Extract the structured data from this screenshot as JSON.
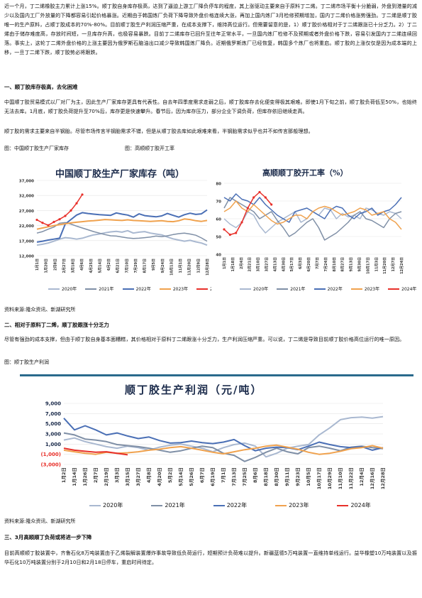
{
  "paragraphs": {
    "intro": "近一个月，丁二烯橡胶主力累计上涨15%。顺丁胶自身库存极高，达到了逼迫上游工厂降负停车的程度，其上涨驱动主要来自于原料丁二烯。丁二烯市场平衡十分脆弱，外盘到港量的减少以及国内工厂外放量的下降都容易引起价格暴涨。近期由于韩国炼厂负荷下降导致外盘价格连续大涨，再加上国内炼厂3月检修预期增加，国内丁二烯价格涨势强劲。丁二烯是顺丁胶唯一的生产原料，占顺丁胶成本的70%-80%。目前顺丁胶生产利润压缩严重，在成本支撑下，维持高位运行。但需要留意的是，1）顺丁胶价格相对于丁二烯跟涨已十分乏力。2）丁二烯由于储存难度高，存放时间短，一旦库存升高，也极容易暴跌。目前丁二烯库存已回升至往年正常水平，一旦国内炼厂检修不及预期或者外盘价格下跌，容易引发国内丁二烯连续回落。事实上，这轮丁二烯外盘价格的上涨主要因为俄罗斯石脑油出口减少导致韩国炼厂降负。近期俄罗斯炼厂已经恢复，韩国多个炼厂也将重启。顺丁胶的上涨仅仅是因为成本端的上移，一旦丁二烯下跌，顺丁胶势必将跟跌。",
    "s1_p1": "中国顺丁胶贸易模式以厂对厂为主，因此生产厂家库存更具有代表性。自去年四季度需求走弱之后，顺丁胶库存去化便变得极其艰难。即使1月下旬之前，顺丁胶负荷低至50%，也始终无法去库。1月底，顺丁胶负荷提升至70%后，库存更是快速攀升。春节后，因为库存压力，部分企业下调负荷，但库存依旧继续走高。",
    "s1_p2": "顺丁胶的需求主要来自半钢胎。尽管市场传言半钢胎需求不错，但是从顺丁胶去库如此艰难来看，半钢胎需求似乎也并不如传言那般理想。",
    "s2_p1": "尽管有强劲的成本支撑，但由于顺丁胶自身基本面糟糕，其价格相对于原料丁二烯跟涨十分乏力，生产利润压缩严重。可以说，丁二烯是导致目前顺丁胶价格高位运行的唯一原因。",
    "s3_p1": "目前高顺顺丁胶装置中，齐鲁石化8万吨装置由于乙烯裂解装置爆炸事故导致低负荷运行，短期预计负荷难以提升。新疆蓝德5万吨装置一直维持单线运行。益华橡塑10万吨装置以及振华石化10万吨装置分别于2月10日和2月18日停车，重启时间待定。"
  },
  "headings": {
    "s1": "一、顺丁胶库存极高，去化困难",
    "s2": "二、相对于原料丁二烯，顺丁胶跟涨十分乏力",
    "s3": "三、3月高顺顺丁负荷或将进一步下降"
  },
  "captions": {
    "fig_inventory": "图：中国顺丁胶生产厂家库存",
    "fig_rate": "图：高顺顺丁胶开工率",
    "source1": "资料来源:隆众资讯、新湖研究所",
    "fig_profit": "图：顺丁胶生产利润",
    "source2": "资料来源:隆众资讯、新湖研究所"
  },
  "colors": {
    "y2020": "#a9b8d0",
    "y2021": "#7f8fa6",
    "y2022": "#4a6fb5",
    "y2023": "#f0a24e",
    "y2024": "#e8302a",
    "profit2022": "#3a62b0",
    "profit2023": "#f5a04a",
    "grid": "#e3e3e3",
    "titleBand": "#2a6a8c"
  },
  "chart_data": [
    {
      "id": "inventory",
      "type": "line",
      "title": "中国顺丁胶生产厂家库存（吨）",
      "ylim": [
        12000,
        37000
      ],
      "yticks": [
        "12,000",
        "17,000",
        "22,000",
        "27,000",
        "32,000",
        "37,000"
      ],
      "xticks": [
        "1月1日",
        "1月20日",
        "2月8日",
        "2月27日",
        "3月18日",
        "4月6日",
        "4月25日",
        "5月14日",
        "6月2日",
        "6月21日",
        "7月10日",
        "7月29日",
        "8月17日",
        "9月5日",
        "9月24日",
        "10月13日",
        "11月1日",
        "11月20日",
        "12月9日",
        "12月28日"
      ],
      "series": [
        {
          "name": "2020年",
          "color_key": "y2020",
          "width": 2,
          "values": [
            15500,
            15800,
            16200,
            16800,
            17500,
            18000,
            17800,
            17500,
            17800,
            18400,
            18900,
            19200,
            19600,
            19900,
            20100,
            19800,
            20300,
            19500,
            19800,
            20000,
            19500,
            19200,
            18900,
            18200,
            17600,
            17200,
            16800,
            17100,
            16600,
            16200,
            15500
          ]
        },
        {
          "name": "2021年",
          "color_key": "y2021",
          "width": 1.5,
          "values": [
            19500,
            20000,
            20800,
            21500,
            22800,
            23000,
            22500,
            21800,
            21200,
            20600,
            20000,
            19500,
            19000,
            18600,
            18500,
            18200,
            17900,
            17700,
            17800,
            18000,
            18200,
            18500,
            18300,
            18600,
            19000,
            19300,
            19500,
            19200,
            18800,
            17900,
            16800
          ]
        },
        {
          "name": "2022年",
          "color_key": "y2022",
          "width": 2,
          "values": [
            16500,
            16800,
            17200,
            17500,
            17800,
            22500,
            24000,
            25500,
            26300,
            26000,
            25800,
            25600,
            25500,
            25400,
            26200,
            25800,
            25500,
            24800,
            25900,
            25300,
            25100,
            24900,
            25200,
            26000,
            25400,
            24800,
            25600,
            26100,
            25700,
            25900,
            27200
          ]
        },
        {
          "name": "2023年",
          "color_key": "y2023",
          "width": 2,
          "values": [
            20800,
            21200,
            21600,
            22000,
            22300,
            22600,
            22900,
            23100,
            23300,
            23500,
            23600,
            23800,
            24000,
            23900,
            23800,
            23700,
            23900,
            23700,
            23600,
            23500,
            23400,
            23500,
            23600,
            23400,
            23300,
            23600,
            24200,
            24000,
            23600,
            23400,
            23700
          ]
        },
        {
          "name": "2024年",
          "color_key": "y2024",
          "width": 1.5,
          "markers": true,
          "values": [
            23900,
            22900,
            22100,
            23200,
            24100,
            25200,
            27000,
            29400,
            32300
          ]
        }
      ]
    },
    {
      "id": "operating_rate",
      "type": "line",
      "title": "高顺顺丁胶开工率（%）",
      "ylim": [
        40,
        80
      ],
      "yticks": [
        "40",
        "50",
        "60",
        "70",
        "80"
      ],
      "xticks": [
        "1月1日",
        "1月18日",
        "2月4日",
        "2月21日",
        "3月10日",
        "3月27日",
        "4月13日",
        "4月30日",
        "5月17日",
        "6月3日",
        "6月20日",
        "7月7日",
        "7月24日",
        "8月10日",
        "8月27日",
        "9月13日",
        "9月30日",
        "10月17日",
        "11月3日",
        "11月20日",
        "12月7日",
        "12月24日"
      ],
      "series": [
        {
          "name": "2020年",
          "color_key": "y2020",
          "width": 1.5,
          "values": [
            60,
            57,
            55,
            58,
            64,
            62,
            56,
            52,
            55,
            58,
            60,
            62,
            64,
            58,
            60,
            64,
            62,
            66,
            65,
            60,
            63,
            61,
            62,
            60,
            66,
            65,
            63,
            62,
            64,
            63,
            60
          ]
        },
        {
          "name": "2021年",
          "color_key": "y2021",
          "width": 1.5,
          "values": [
            66,
            72,
            70,
            68,
            66,
            64,
            60,
            62,
            64,
            59,
            55,
            50,
            52,
            55,
            58,
            60,
            55,
            48,
            50,
            52,
            55,
            58,
            62,
            64,
            60,
            59,
            57,
            55,
            60,
            63,
            64
          ]
        },
        {
          "name": "2022年",
          "color_key": "y2022",
          "width": 1.5,
          "values": [
            72,
            70,
            74,
            71,
            70,
            68,
            72,
            68,
            65,
            62,
            60,
            58,
            64,
            65,
            66,
            64,
            62,
            60,
            65,
            67,
            66,
            62,
            60,
            63,
            64,
            66,
            62,
            64,
            65,
            68,
            72
          ]
        },
        {
          "name": "2023年",
          "color_key": "y2023",
          "width": 1.5,
          "values": [
            64,
            66,
            70,
            66,
            64,
            68,
            65,
            62,
            59,
            57,
            58,
            60,
            62,
            62,
            60,
            64,
            66,
            67,
            66,
            64,
            62,
            63,
            64,
            66,
            65,
            62,
            63,
            64,
            60,
            58,
            54
          ]
        },
        {
          "name": "2024年",
          "color_key": "y2024",
          "width": 1.5,
          "markers": true,
          "values": [
            54,
            51,
            52,
            58,
            66,
            72,
            75,
            72,
            68
          ]
        }
      ]
    },
    {
      "id": "profit",
      "type": "line",
      "title": "顺丁胶生产利润（元/吨）",
      "ylim": [
        -3000,
        9000
      ],
      "yticks": [
        "(3,000)",
        "(1,000)",
        "1,000",
        "3,000",
        "5,000",
        "7,000",
        "9,000"
      ],
      "xticks": [
        "1月2日",
        "1月14日",
        "1月26日",
        "2月7日",
        "2月19日",
        "3月3日",
        "3月15日",
        "3月27日",
        "4月8日",
        "4月20日",
        "5月2日",
        "5月14日",
        "5月26日",
        "6月7日",
        "6月19日",
        "7月1日",
        "7月13日",
        "7月25日",
        "8月6日",
        "8月18日",
        "8月30日",
        "9月11日",
        "9月23日",
        "10月5日",
        "10月17日",
        "10月29日",
        "11月10日",
        "11月22日",
        "12月4日",
        "12月16日",
        "12月28日"
      ],
      "series": [
        {
          "name": "2020年",
          "color_key": "y2020",
          "width": 2,
          "values": [
            1800,
            2200,
            1500,
            1000,
            500,
            200,
            600,
            300,
            -200,
            400,
            800,
            1000,
            600,
            200,
            -500,
            300,
            900,
            1200,
            600,
            -1500,
            -800,
            200,
            600,
            900,
            2800,
            4200,
            5800,
            6200,
            6300,
            6100,
            6400
          ]
        },
        {
          "name": "2021年",
          "color_key": "y2021",
          "width": 2,
          "values": [
            3200,
            2800,
            2000,
            1800,
            1500,
            900,
            700,
            500,
            200,
            -200,
            -600,
            -300,
            200,
            600,
            300,
            -800,
            -1200,
            -2400,
            -1600,
            -600,
            200,
            -500,
            -900,
            300,
            600,
            200,
            -300,
            400,
            600,
            300,
            100
          ]
        },
        {
          "name": "2022年",
          "color_key": "y2022",
          "width": 2,
          "values": [
            6100,
            3800,
            4600,
            3800,
            2800,
            3200,
            2600,
            2100,
            2400,
            1700,
            1200,
            1300,
            1600,
            1300,
            1100,
            1400,
            1900,
            700,
            -300,
            200,
            400,
            300,
            -100,
            600,
            1400,
            900,
            500,
            300,
            500,
            -200,
            300
          ]
        },
        {
          "name": "2023年",
          "color_key": "y2023",
          "width": 2,
          "values": [
            -200,
            -500,
            -800,
            -1000,
            -600,
            -800,
            -700,
            -500,
            -200,
            0,
            300,
            500,
            200,
            -200,
            -600,
            -900,
            -500,
            -100,
            200,
            600,
            800,
            400,
            0,
            -600,
            -1000,
            -800,
            -400,
            100,
            300,
            700,
            200
          ]
        },
        {
          "name": "2024年",
          "color_key": "y2024",
          "width": 2,
          "values": [
            200,
            -200,
            -400,
            -600,
            -500,
            -800,
            -1100
          ]
        }
      ]
    }
  ]
}
